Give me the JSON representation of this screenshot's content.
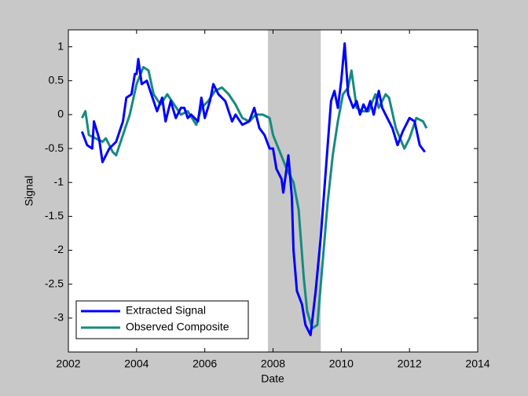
{
  "chart_data": {
    "type": "line",
    "xlabel": "Date",
    "ylabel": "Signal",
    "xlim": [
      2002,
      2014
    ],
    "xticks": [
      2002,
      2004,
      2006,
      2008,
      2010,
      2012,
      2014
    ],
    "ylim": [
      -3.5,
      1.25
    ],
    "yticks": [
      -3,
      -2.5,
      -2,
      -1.5,
      -1,
      -0.5,
      0,
      0.5,
      1
    ],
    "shaded_region": [
      2007.85,
      2009.4
    ],
    "shaded_color": "#c8c8c8",
    "legend": "lower left",
    "series": [
      {
        "name": "Extracted Signal",
        "color": "#0000ff",
        "x": [
          2002.4,
          2002.55,
          2002.7,
          2002.75,
          2002.9,
          2003.0,
          2003.2,
          2003.4,
          2003.6,
          2003.7,
          2003.85,
          2003.95,
          2004.0,
          2004.05,
          2004.15,
          2004.3,
          2004.5,
          2004.6,
          2004.75,
          2004.85,
          2005.0,
          2005.15,
          2005.3,
          2005.4,
          2005.5,
          2005.6,
          2005.8,
          2005.9,
          2006.0,
          2006.15,
          2006.25,
          2006.4,
          2006.6,
          2006.8,
          2006.9,
          2007.1,
          2007.3,
          2007.45,
          2007.6,
          2007.75,
          2007.9,
          2008.0,
          2008.1,
          2008.25,
          2008.3,
          2008.45,
          2008.55,
          2008.6,
          2008.7,
          2008.85,
          2008.95,
          2009.1,
          2009.25,
          2009.4,
          2009.55,
          2009.7,
          2009.8,
          2009.9,
          2010.0,
          2010.1,
          2010.2,
          2010.35,
          2010.45,
          2010.55,
          2010.65,
          2010.75,
          2010.85,
          2010.95,
          2011.1,
          2011.2,
          2011.3,
          2011.5,
          2011.65,
          2011.8,
          2012.0,
          2012.15,
          2012.3,
          2012.45
        ],
        "values": [
          -0.25,
          -0.45,
          -0.5,
          -0.1,
          -0.35,
          -0.7,
          -0.5,
          -0.4,
          -0.1,
          0.25,
          0.3,
          0.6,
          0.6,
          0.82,
          0.45,
          0.5,
          0.2,
          0.05,
          0.25,
          -0.1,
          0.2,
          -0.05,
          0.1,
          0.1,
          -0.05,
          0.0,
          -0.1,
          0.25,
          -0.05,
          0.2,
          0.45,
          0.3,
          0.2,
          -0.1,
          0.0,
          -0.15,
          -0.1,
          0.1,
          -0.2,
          -0.3,
          -0.5,
          -0.5,
          -0.8,
          -0.95,
          -1.15,
          -0.6,
          -1.2,
          -2.0,
          -2.6,
          -2.8,
          -3.1,
          -3.25,
          -2.6,
          -1.8,
          -0.8,
          0.2,
          0.35,
          0.1,
          0.5,
          1.05,
          0.3,
          0.1,
          0.2,
          0.0,
          0.15,
          0.05,
          0.2,
          0.0,
          0.35,
          0.1,
          0.0,
          -0.2,
          -0.45,
          -0.25,
          -0.05,
          -0.1,
          -0.45,
          -0.55
        ]
      },
      {
        "name": "Observed Composite",
        "color": "#168a80",
        "x": [
          2002.4,
          2002.5,
          2002.6,
          2002.8,
          2003.0,
          2003.1,
          2003.3,
          2003.4,
          2003.6,
          2003.8,
          2004.0,
          2004.2,
          2004.35,
          2004.5,
          2004.7,
          2004.9,
          2005.1,
          2005.3,
          2005.5,
          2005.75,
          2005.9,
          2006.1,
          2006.3,
          2006.5,
          2006.7,
          2006.9,
          2007.1,
          2007.3,
          2007.5,
          2007.7,
          2007.9,
          2008.0,
          2008.2,
          2008.4,
          2008.6,
          2008.75,
          2008.9,
          2009.0,
          2009.15,
          2009.3,
          2009.45,
          2009.6,
          2009.75,
          2009.9,
          2010.05,
          2010.2,
          2010.3,
          2010.45,
          2010.6,
          2010.8,
          2011.0,
          2011.1,
          2011.3,
          2011.4,
          2011.6,
          2011.85,
          2012.0,
          2012.2,
          2012.4,
          2012.5
        ],
        "values": [
          -0.05,
          0.05,
          -0.3,
          -0.35,
          -0.4,
          -0.35,
          -0.55,
          -0.6,
          -0.3,
          0.0,
          0.45,
          0.7,
          0.65,
          0.3,
          0.15,
          0.3,
          0.15,
          0.0,
          0.05,
          -0.15,
          0.1,
          0.2,
          0.35,
          0.4,
          0.3,
          0.15,
          -0.05,
          -0.1,
          0.0,
          0.0,
          -0.05,
          -0.3,
          -0.55,
          -0.8,
          -1.0,
          -1.4,
          -2.4,
          -2.9,
          -3.15,
          -3.1,
          -2.2,
          -1.3,
          -0.6,
          -0.1,
          0.3,
          0.4,
          0.65,
          0.1,
          0.05,
          0.05,
          0.3,
          0.1,
          0.3,
          0.25,
          -0.2,
          -0.5,
          -0.35,
          -0.05,
          -0.1,
          -0.2
        ]
      }
    ]
  }
}
